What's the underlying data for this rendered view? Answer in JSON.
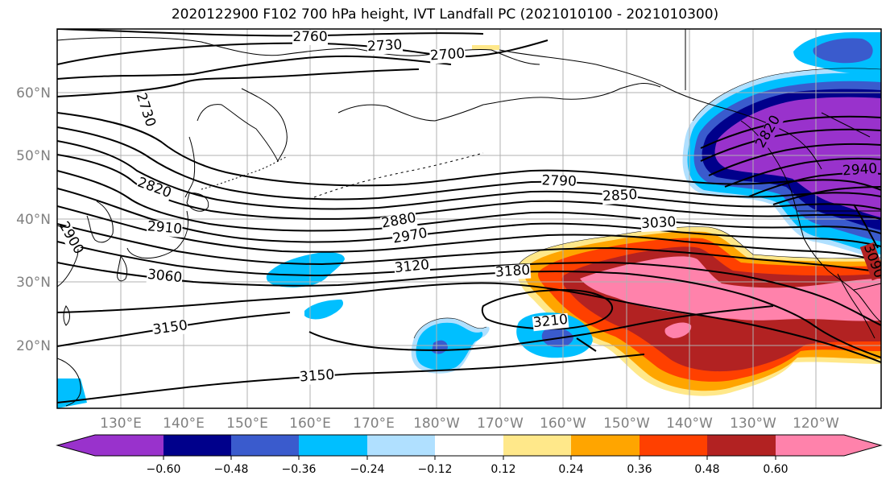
{
  "title": "2020122900 F102 700 hPa height, IVT Landfall PC (2021010100 - 2021010300)",
  "lat_labels": [
    "60°N",
    "50°N",
    "40°N",
    "30°N",
    "20°N"
  ],
  "lon_labels": [
    "130°E",
    "140°E",
    "150°E",
    "160°E",
    "170°E",
    "180°W",
    "170°W",
    "160°W",
    "150°W",
    "140°W",
    "130°W",
    "120°W"
  ],
  "contour_labels": [
    "2760",
    "2730",
    "2700",
    "2730",
    "2820",
    "2910",
    "2900",
    "3060",
    "3150",
    "3150",
    "2880",
    "2970",
    "3120",
    "3180",
    "3210",
    "2790",
    "2850",
    "3030",
    "2940",
    "3090",
    "2820"
  ],
  "colorbar": {
    "tick_labels": [
      "−0.60",
      "−0.48",
      "−0.36",
      "−0.24",
      "−0.12",
      "0.12",
      "0.24",
      "0.36",
      "0.48",
      "0.60"
    ],
    "colors": [
      "#9932cc",
      "#00008b",
      "#3a5bcd",
      "#00bfff",
      "#b0e0ff",
      "#ffffff",
      "#ffe88a",
      "#ffa500",
      "#ff4000",
      "#b22222",
      "#ff82ab"
    ]
  },
  "field_colors": {
    "purple": "#9932cc",
    "navy": "#00008b",
    "royal": "#3a5bcd",
    "cyan": "#00bfff",
    "lightblue": "#b0e0ff",
    "yellow": "#ffe88a",
    "orange": "#ffa500",
    "redorange": "#ff4000",
    "darkred": "#b22222",
    "pink": "#ff82ab"
  }
}
